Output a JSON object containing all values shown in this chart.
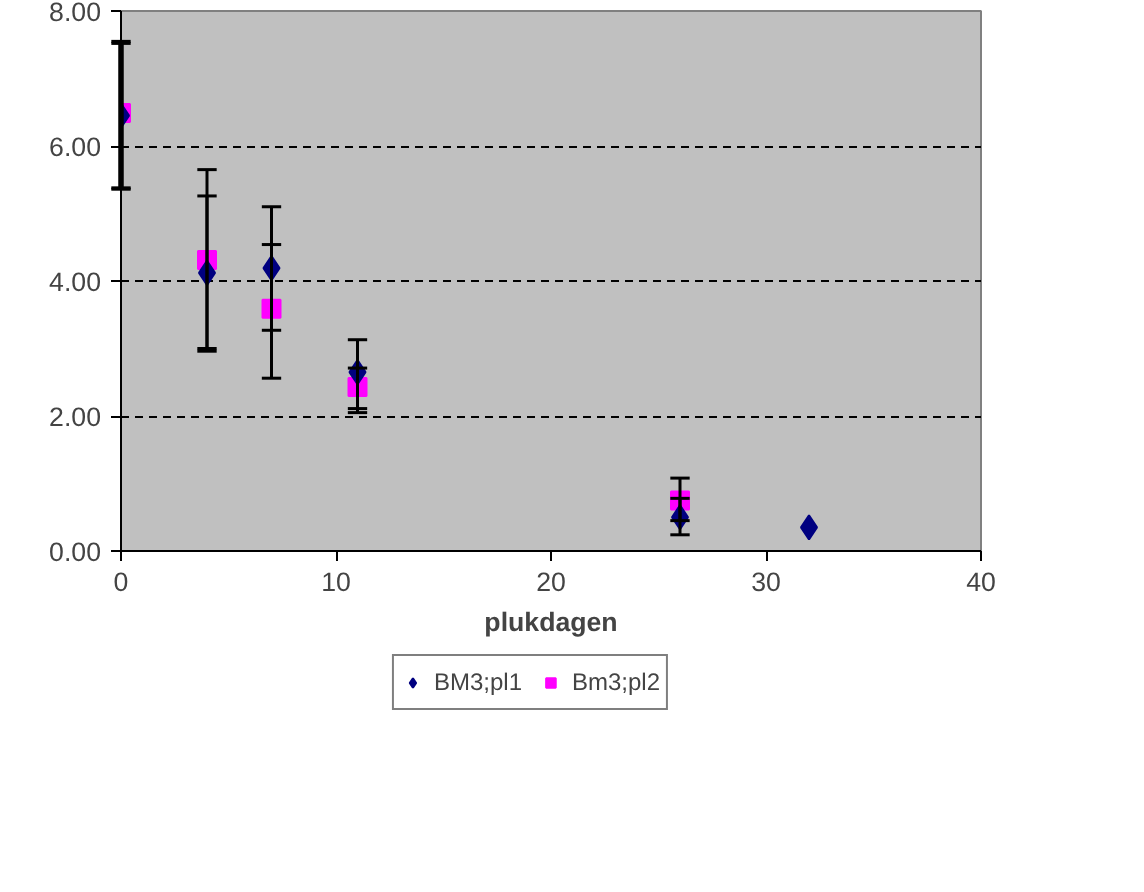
{
  "chart_data": {
    "type": "scatter",
    "xlabel": "plukdagen",
    "x": [
      0,
      4,
      7,
      11,
      26,
      32
    ],
    "series": [
      {
        "name": "BM3;pl1",
        "color": "#000080",
        "marker": "diamond",
        "values": [
          6.45,
          4.12,
          4.19,
          2.65,
          0.5,
          0.35
        ],
        "errors": [
          [
            5.36,
            7.52
          ],
          [
            3.0,
            5.26
          ],
          [
            3.27,
            5.1
          ],
          [
            2.11,
            3.13
          ],
          [
            0.24,
            0.78
          ],
          null
        ]
      },
      {
        "name": "Bm3;pl2",
        "color": "#ff00ff",
        "marker": "square",
        "values": [
          6.49,
          4.31,
          3.59,
          2.43,
          0.75,
          null
        ],
        "errors": [
          [
            5.38,
            7.55
          ],
          [
            2.96,
            5.65
          ],
          [
            2.56,
            4.54
          ],
          [
            2.05,
            2.71
          ],
          [
            0.45,
            1.08
          ],
          null
        ]
      }
    ],
    "xlim": [
      0,
      40
    ],
    "xticks": [
      0,
      10,
      20,
      30,
      40
    ],
    "ylim": [
      0,
      8
    ],
    "yticks": [
      {
        "value": 0,
        "label": "0.00"
      },
      {
        "value": 2,
        "label": "2.00"
      },
      {
        "value": 4,
        "label": "4.00"
      },
      {
        "value": 6,
        "label": "6.00"
      },
      {
        "value": 8,
        "label": "8.00"
      }
    ],
    "grid": "y",
    "legend": "bottom"
  }
}
